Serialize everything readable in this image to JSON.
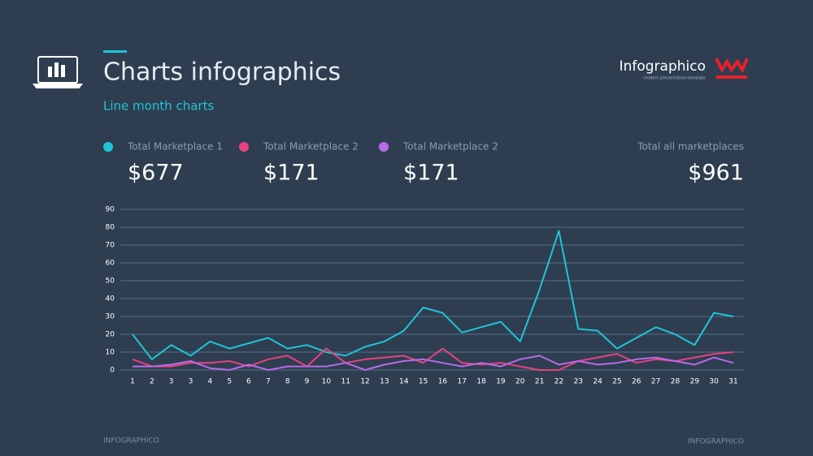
{
  "header": {
    "title": "Charts infographics",
    "subtitle": "Line month charts",
    "logo": "Infographico",
    "tagline": "modern presentation template"
  },
  "footer": {
    "left": "INFOGRAPHICO",
    "right": "INFOGRAPHICO"
  },
  "summary": {
    "total_name": "Total all marketplaces",
    "total_label": "$961"
  },
  "chart_data": {
    "type": "line",
    "categories": [
      "1",
      "2",
      "3",
      "3",
      "4",
      "5",
      "6",
      "7",
      "8",
      "9",
      "10",
      "11",
      "12",
      "13",
      "14",
      "15",
      "16",
      "17",
      "18",
      "19",
      "20",
      "21",
      "22",
      "23",
      "24",
      "25",
      "26",
      "27",
      "28",
      "29",
      "30",
      "31"
    ],
    "series": [
      {
        "name": "Total Marketplace 1",
        "color": "#1fc5d6",
        "total_label": "$677",
        "values": [
          20,
          6,
          14,
          8,
          16,
          12,
          15,
          18,
          12,
          14,
          10,
          8,
          13,
          16,
          22,
          35,
          32,
          21,
          24,
          27,
          16,
          45,
          78,
          23,
          22,
          12,
          18,
          24,
          20,
          14,
          32,
          30
        ]
      },
      {
        "name": "Total Marketplace 2",
        "color": "#e8417f",
        "total_label": "$171",
        "values": [
          6,
          2,
          2,
          4,
          4,
          5,
          2,
          6,
          8,
          2,
          12,
          4,
          6,
          7,
          8,
          4,
          12,
          4,
          3,
          4,
          2,
          0,
          0,
          5,
          7,
          9,
          4,
          6,
          5,
          7,
          9,
          10
        ]
      },
      {
        "name": "Total Marketplace 2",
        "color": "#b86ae8",
        "total_label": "$171",
        "values": [
          2,
          2,
          3,
          5,
          1,
          0,
          3,
          0,
          2,
          2,
          2,
          4,
          0,
          3,
          5,
          6,
          4,
          2,
          4,
          2,
          6,
          8,
          3,
          5,
          3,
          4,
          6,
          7,
          5,
          3,
          7,
          4
        ]
      }
    ],
    "ylim": [
      0,
      90
    ],
    "yticks": [
      0,
      10,
      20,
      30,
      40,
      50,
      60,
      70,
      80,
      90
    ],
    "grid": true
  }
}
